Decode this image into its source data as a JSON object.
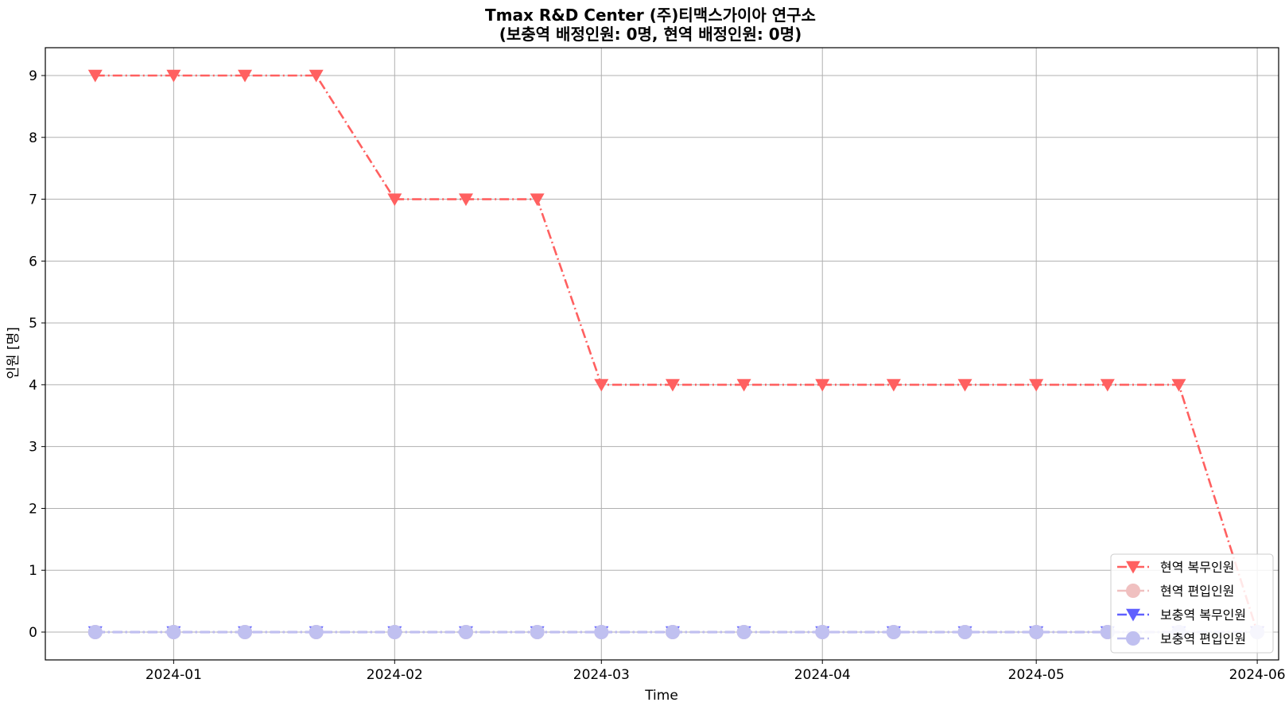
{
  "chart_data": {
    "type": "line",
    "title": "Tmax R&D Center (주)티맥스가이아 연구소",
    "subtitle": "(보충역 배정인원: 0명, 현역 배정인원: 0명)",
    "xlabel": "Time",
    "ylabel": "인원 [명]",
    "x_tick_labels": [
      "2024-01",
      "2024-02",
      "2024-03",
      "2024-04",
      "2024-05",
      "2024-06"
    ],
    "x_tick_dates": [
      "2024-01-01",
      "2024-02-01",
      "2024-03-01",
      "2024-04-01",
      "2024-05-01",
      "2024-06-01"
    ],
    "xlim": [
      "2023-12-14",
      "2024-06-04"
    ],
    "ylim": [
      -0.45,
      9.45
    ],
    "y_ticks": [
      0,
      1,
      2,
      3,
      4,
      5,
      6,
      7,
      8,
      9
    ],
    "grid": true,
    "legend_position": "lower-right",
    "x": [
      "2023-12-21",
      "2024-01-01",
      "2024-01-11",
      "2024-01-21",
      "2024-02-01",
      "2024-02-11",
      "2024-02-21",
      "2024-03-01",
      "2024-03-11",
      "2024-03-21",
      "2024-04-01",
      "2024-04-11",
      "2024-04-21",
      "2024-05-01",
      "2024-05-11",
      "2024-05-21",
      "2024-06-01"
    ],
    "series": [
      {
        "name": "현역 복무인원",
        "marker": "triangle-down",
        "color": "#ff6060",
        "line_style": "dash-dot",
        "values": [
          9,
          9,
          9,
          9,
          7,
          7,
          7,
          4,
          4,
          4,
          4,
          4,
          4,
          4,
          4,
          4,
          0
        ]
      },
      {
        "name": "현역 편입인원",
        "marker": "circle",
        "color": "#f0c0c0",
        "line_style": "dash-dot",
        "values": [
          0,
          0,
          0,
          0,
          0,
          0,
          0,
          0,
          0,
          0,
          0,
          0,
          0,
          0,
          0,
          0,
          0
        ]
      },
      {
        "name": "보충역 복무인원",
        "marker": "triangle-down",
        "color": "#6060ff",
        "line_style": "dash-dot",
        "values": [
          0,
          0,
          0,
          0,
          0,
          0,
          0,
          0,
          0,
          0,
          0,
          0,
          0,
          0,
          0,
          0,
          0
        ]
      },
      {
        "name": "보충역 편입인원",
        "marker": "circle",
        "color": "#c0c0f0",
        "line_style": "dash-dot",
        "values": [
          0,
          0,
          0,
          0,
          0,
          0,
          0,
          0,
          0,
          0,
          0,
          0,
          0,
          0,
          0,
          0,
          0
        ]
      }
    ]
  }
}
